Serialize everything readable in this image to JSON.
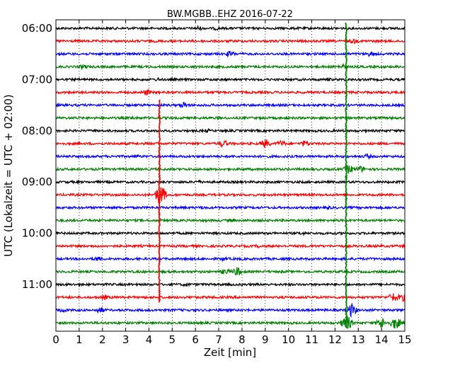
{
  "chart_data": {
    "type": "line",
    "title": "BW.MGBB..EHZ 2016-07-22",
    "xlabel": "Zeit  [min]",
    "ylabel": "UTC (Lokalzeit = UTC + 02:00)",
    "xlim": [
      0,
      15
    ],
    "x_ticks": [
      0,
      1,
      2,
      3,
      4,
      5,
      6,
      7,
      8,
      9,
      10,
      11,
      12,
      13,
      14,
      15
    ],
    "y_tick_labels": [
      "06:00",
      "07:00",
      "08:00",
      "09:00",
      "10:00",
      "11:00"
    ],
    "grid": "vertical dotted",
    "series_colors": [
      "#000000",
      "#ff0000",
      "#0000ff",
      "#008000"
    ],
    "traces": [
      {
        "time": "06:00",
        "color": "#000000",
        "events": [
          [
            6.1,
            4
          ],
          [
            6.9,
            3
          ]
        ]
      },
      {
        "time": "06:15",
        "color": "#ff0000",
        "events": [
          [
            12.8,
            4
          ]
        ]
      },
      {
        "time": "06:30",
        "color": "#0000ff",
        "events": [
          [
            7.5,
            5
          ],
          [
            13.5,
            4
          ]
        ]
      },
      {
        "time": "06:45",
        "color": "#008000",
        "events": [
          [
            1.2,
            4
          ],
          [
            12.3,
            4
          ]
        ]
      },
      {
        "time": "07:00",
        "color": "#000000",
        "events": [
          [
            4.4,
            3
          ],
          [
            11.7,
            3
          ]
        ]
      },
      {
        "time": "07:15",
        "color": "#ff0000",
        "events": [
          [
            3.9,
            5
          ]
        ]
      },
      {
        "time": "07:30",
        "color": "#0000ff",
        "events": [
          [
            5.5,
            5
          ]
        ]
      },
      {
        "time": "07:45",
        "color": "#008000",
        "events": [
          [
            3.3,
            3
          ]
        ]
      },
      {
        "time": "08:00",
        "color": "#000000",
        "events": [
          [
            6.5,
            3
          ]
        ]
      },
      {
        "time": "08:15",
        "color": "#ff0000",
        "events": [
          [
            7.2,
            6
          ],
          [
            9.0,
            7
          ],
          [
            9.7,
            5
          ],
          [
            10.7,
            5
          ]
        ]
      },
      {
        "time": "08:30",
        "color": "#0000ff",
        "events": [
          [
            3.5,
            3
          ],
          [
            13.4,
            4
          ]
        ]
      },
      {
        "time": "08:45",
        "color": "#008000",
        "events": [
          [
            12.6,
            7
          ],
          [
            13.1,
            5
          ]
        ]
      },
      {
        "time": "09:00",
        "color": "#000000",
        "events": [
          [
            6.1,
            3
          ]
        ]
      },
      {
        "time": "09:15",
        "color": "#ff0000",
        "events": [
          [
            4.5,
            16
          ]
        ]
      },
      {
        "time": "09:30",
        "color": "#0000ff",
        "events": [
          [
            6.3,
            3
          ],
          [
            11.7,
            3
          ]
        ]
      },
      {
        "time": "09:45",
        "color": "#008000",
        "events": [
          [
            7.6,
            3
          ]
        ]
      },
      {
        "time": "10:00",
        "color": "#000000",
        "events": [
          [
            10.6,
            3
          ]
        ]
      },
      {
        "time": "10:15",
        "color": "#ff0000",
        "events": [
          [
            8.7,
            3
          ]
        ]
      },
      {
        "time": "10:30",
        "color": "#0000ff",
        "events": [
          [
            1.8,
            4
          ],
          [
            7.2,
            3
          ]
        ]
      },
      {
        "time": "10:45",
        "color": "#008000",
        "events": [
          [
            7.3,
            5
          ],
          [
            7.8,
            7
          ]
        ]
      },
      {
        "time": "11:00",
        "color": "#000000",
        "events": [
          [
            5.6,
            3
          ]
        ]
      },
      {
        "time": "11:15",
        "color": "#ff0000",
        "events": [
          [
            2.1,
            4
          ],
          [
            14.5,
            7
          ],
          [
            14.9,
            6
          ]
        ]
      },
      {
        "time": "11:30",
        "color": "#0000ff",
        "events": [
          [
            0.3,
            4
          ],
          [
            1.9,
            5
          ],
          [
            12.7,
            10
          ]
        ]
      },
      {
        "time": "11:45",
        "color": "#008000",
        "events": [
          [
            12.5,
            12
          ],
          [
            14.0,
            9
          ],
          [
            14.6,
            10
          ]
        ]
      }
    ],
    "vertical_events": [
      {
        "x": 4.45,
        "color": "#ff0000",
        "from_time": "07:30",
        "to_time": "11:15"
      },
      {
        "x": 12.48,
        "color": "#008000",
        "from_time": "06:00",
        "to_time": "11:45"
      }
    ]
  }
}
